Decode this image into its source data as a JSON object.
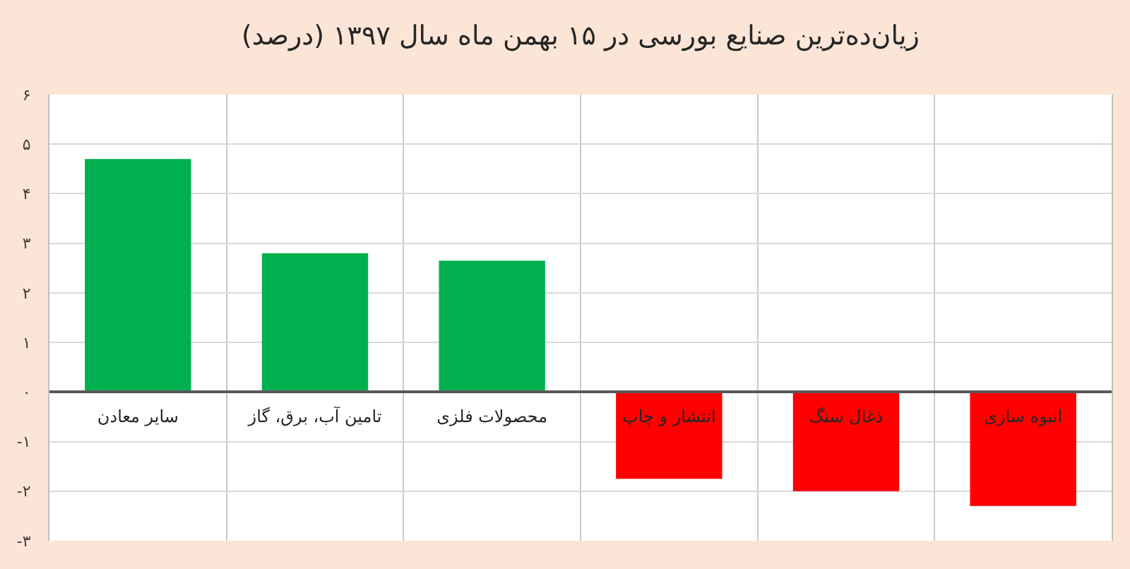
{
  "chart_data": {
    "type": "bar",
    "title": "زیان‌ده‌ترین صنایع بورسی در ۱۵ بهمن ماه سال ۱۳۹۷ (درصد)",
    "categories": [
      "سایر معادن",
      "تامین آب، برق، گاز",
      "محصولات فلزی",
      "انتشار و چاپ",
      "ذغال سنگ",
      "انبوه سازی"
    ],
    "values": [
      4.7,
      2.8,
      2.65,
      -1.75,
      -2,
      -2.3
    ],
    "colors": [
      "#00b050",
      "#00b050",
      "#00b050",
      "#ff0000",
      "#ff0000",
      "#ff0000"
    ],
    "ylim": [
      -3,
      6
    ],
    "yticks": [
      {
        "value": 6,
        "label": "۶"
      },
      {
        "value": 5,
        "label": "۵"
      },
      {
        "value": 4,
        "label": "۴"
      },
      {
        "value": 3,
        "label": "۳"
      },
      {
        "value": 2,
        "label": "۲"
      },
      {
        "value": 1,
        "label": "۱"
      },
      {
        "value": 0,
        "label": "۰"
      },
      {
        "value": -1,
        "label": "-۱"
      },
      {
        "value": -2,
        "label": "-۲"
      },
      {
        "value": -3,
        "label": "-۳"
      }
    ],
    "grid": true
  }
}
